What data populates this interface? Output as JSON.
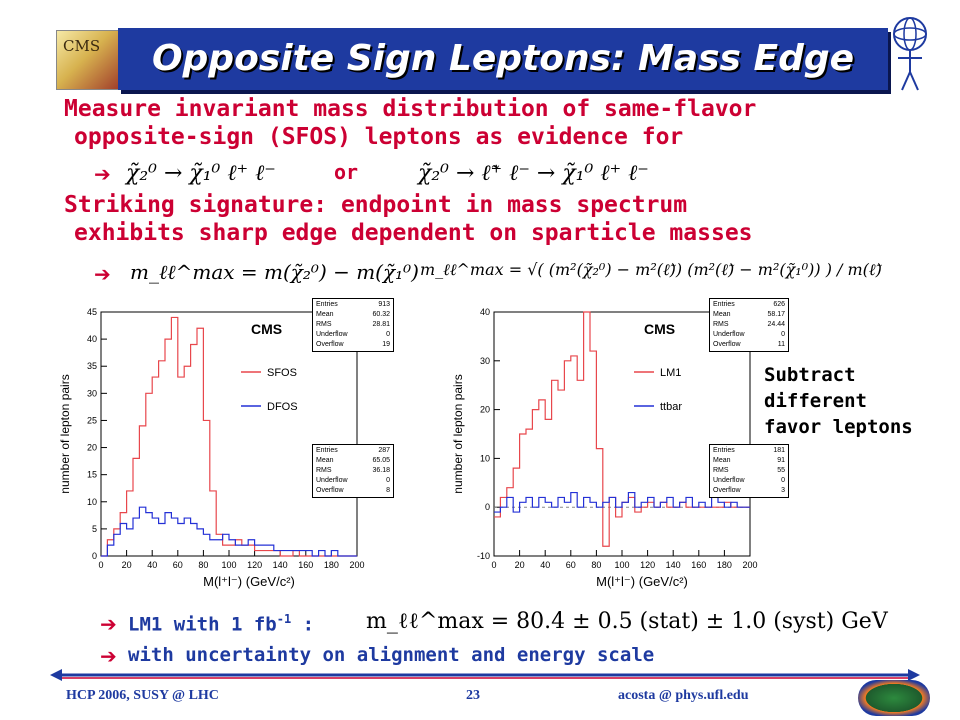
{
  "title": "Opposite Sign Leptons: Mass Edge",
  "logo": {
    "text": "CMS"
  },
  "bullets": {
    "line1": "Measure invariant mass distribution of same-flavor",
    "line2": "opposite-sign (SFOS) leptons as evidence for",
    "or_word": "or",
    "line3": "Striking signature: endpoint in mass spectrum",
    "line4": "exhibits sharp edge dependent on sparticle masses"
  },
  "formulas": {
    "decay1": "χ̃₂⁰ → χ̃₁⁰ ℓ⁺ ℓ⁻",
    "decay2": "χ̃₂⁰ → ℓ̃⁺ ℓ⁻ → χ̃₁⁰ ℓ⁺ ℓ⁻",
    "edge1": "m_ℓℓ^max = m(χ̃₂⁰) − m(χ̃₁⁰)",
    "edge2": "m_ℓℓ^max = √( (m²(χ̃₂⁰) − m²(ℓ̃)) (m²(ℓ̃) − m²(χ̃₁⁰)) ) / m(ℓ̃)",
    "result": "m_ℓℓ^max = 80.4 ± 0.5 (stat) ± 1.0 (syst) GeV"
  },
  "side_note": [
    "Subtract",
    "different",
    "favor leptons"
  ],
  "bottom": {
    "lm1_label": "LM1 with 1 fb",
    "lm1_sup": "-1",
    "lm1_colon": " :",
    "uncertainty": "with uncertainty on alignment and energy scale"
  },
  "footer": {
    "left": "HCP 2006,    SUSY @ LHC",
    "center": "23",
    "right": "acosta @ phys.ufl.edu"
  },
  "colors": {
    "title_bg": "#1e3aa0",
    "accent_red": "#cc0033",
    "accent_blue": "#1e3aa0",
    "series_red": "#e8474c",
    "series_blue": "#2431d6"
  },
  "icons": [
    "cms-logo-icon",
    "atom-stick-figure-icon",
    "double-arrow-rule-icon",
    "florida-gators-logo-icon"
  ],
  "chart_data": [
    {
      "type": "line",
      "title": "CMS",
      "xlabel": "M(l⁺l⁻) (GeV/c²)",
      "ylabel": "number of lepton pairs",
      "xlim": [
        0,
        200
      ],
      "ylim": [
        0,
        45
      ],
      "x_ticks": [
        "0",
        "20",
        "40",
        "60",
        "80",
        "100",
        "120",
        "140",
        "160",
        "180",
        "200"
      ],
      "y_ticks": [
        "0",
        "5",
        "10",
        "15",
        "20",
        "25",
        "30",
        "35",
        "40",
        "45"
      ],
      "bin_width": 5,
      "legend": "right",
      "series": [
        {
          "name": "SFOS",
          "color": "#e8474c",
          "values": [
            0,
            3,
            5,
            8,
            12,
            18,
            24,
            30,
            33,
            36,
            40,
            44,
            33,
            35,
            39,
            42,
            25,
            12,
            4,
            2,
            2,
            3,
            2,
            2,
            1,
            1,
            1,
            1,
            0,
            0,
            1,
            0,
            0,
            0,
            0,
            0,
            0,
            0,
            0,
            0
          ]
        },
        {
          "name": "DFOS",
          "color": "#2431d6",
          "values": [
            0,
            2,
            4,
            6,
            5,
            7,
            9,
            8,
            7,
            6,
            8,
            7,
            6,
            7,
            6,
            5,
            4,
            3,
            3,
            4,
            3,
            2,
            2,
            3,
            2,
            2,
            2,
            1,
            1,
            1,
            1,
            1,
            1,
            0,
            1,
            0,
            1,
            0,
            0,
            0
          ]
        }
      ],
      "stats": [
        {
          "Entries": "913",
          "Mean": "60.32",
          "RMS": "28.81",
          "Underflow": "0",
          "Overflow": "19"
        },
        {
          "Entries": "287",
          "Mean": "65.05",
          "RMS": "36.18",
          "Underflow": "0",
          "Overflow": "8"
        }
      ]
    },
    {
      "type": "line",
      "title": "CMS",
      "xlabel": "M(l⁺l⁻) (GeV/c²)",
      "ylabel": "number of lepton pairs",
      "xlim": [
        0,
        200
      ],
      "ylim": [
        -10,
        40
      ],
      "x_ticks": [
        "0",
        "20",
        "40",
        "60",
        "80",
        "100",
        "120",
        "140",
        "160",
        "180",
        "200"
      ],
      "y_ticks": [
        "-10",
        "0",
        "10",
        "20",
        "30",
        "40"
      ],
      "bin_width": 5,
      "legend": "right",
      "series": [
        {
          "name": "LM1",
          "color": "#e8474c",
          "values": [
            -2,
            2,
            4,
            8,
            15,
            16,
            20,
            22,
            18,
            26,
            24,
            30,
            31,
            26,
            40,
            32,
            12,
            -8,
            2,
            -2,
            1,
            2,
            -1,
            0,
            1,
            0,
            1,
            0,
            0,
            1,
            0,
            0,
            0,
            0,
            0,
            0,
            1,
            0,
            0,
            0
          ]
        },
        {
          "name": "ttbar",
          "color": "#2431d6",
          "values": [
            -1,
            0,
            2,
            -1,
            1,
            2,
            0,
            2,
            1,
            0,
            2,
            1,
            3,
            0,
            2,
            1,
            0,
            1,
            2,
            0,
            1,
            3,
            0,
            1,
            2,
            0,
            1,
            2,
            0,
            1,
            2,
            0,
            1,
            0,
            2,
            1,
            0,
            1,
            0,
            0
          ]
        }
      ],
      "stats": [
        {
          "Entries": "626",
          "Mean": "58.17",
          "RMS": "24.44",
          "Underflow": "0",
          "Overflow": "11"
        },
        {
          "Entries": "181",
          "Mean": "91",
          "RMS": "55",
          "Underflow": "0",
          "Overflow": "3"
        }
      ]
    }
  ]
}
